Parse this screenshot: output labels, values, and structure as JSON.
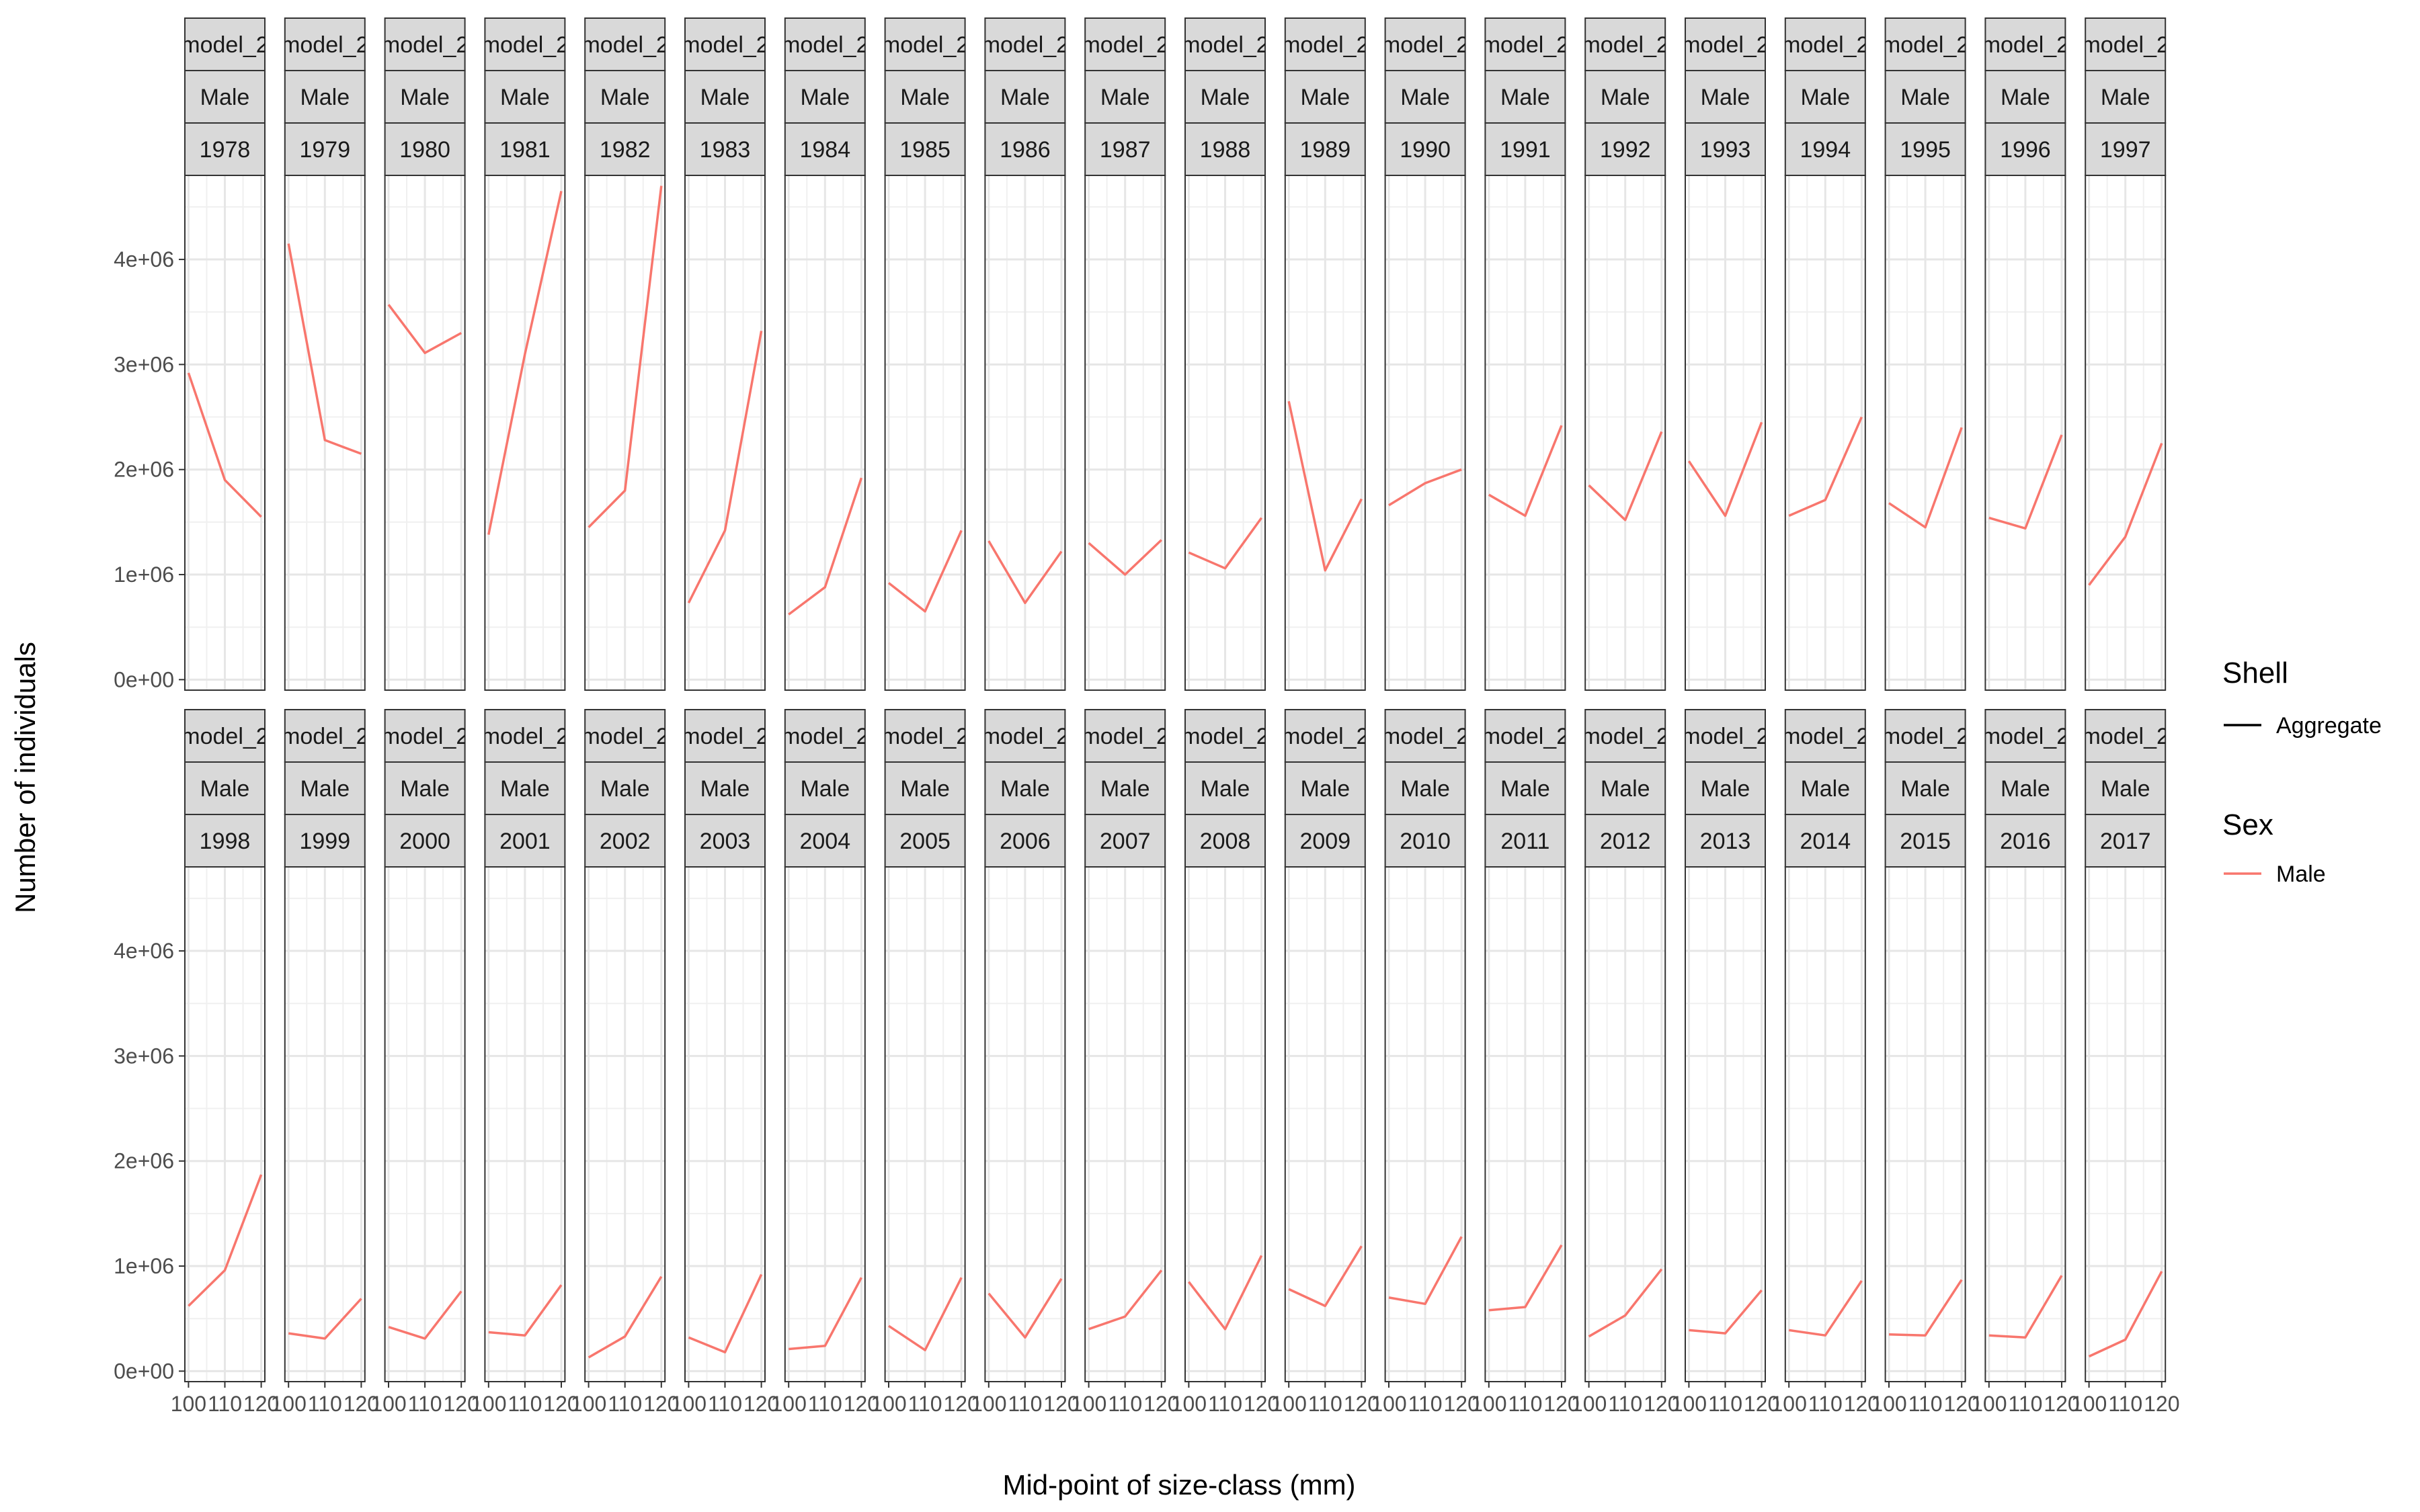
{
  "chart_data": {
    "type": "line",
    "xlabel": "Mid-point of size-class (mm)",
    "ylabel": "Number of individuals",
    "x": [
      100,
      110,
      120
    ],
    "x_tick_labels": [
      "100",
      "110",
      "120"
    ],
    "ylim": [
      -100000,
      4800000
    ],
    "y_ticks": [
      0,
      1000000,
      2000000,
      3000000,
      4000000
    ],
    "y_tick_labels": [
      "0e+00",
      "1e+06",
      "2e+06",
      "3e+06",
      "4e+06"
    ],
    "grid": true,
    "legend_placement": "right",
    "legends": [
      {
        "title": "Shell",
        "entries": [
          {
            "label": "Aggregate",
            "color": "#000000"
          }
        ]
      },
      {
        "title": "Sex",
        "entries": [
          {
            "label": "Male",
            "color": "#F8766D"
          }
        ]
      }
    ],
    "facet_strip_model": "model_2",
    "facet_strip_sex": "Male",
    "series_color": "#F8766D",
    "panels": [
      {
        "year": "1978",
        "values": [
          2920000,
          1900000,
          1550000
        ]
      },
      {
        "year": "1979",
        "values": [
          4150000,
          2280000,
          2150000
        ]
      },
      {
        "year": "1980",
        "values": [
          3570000,
          3110000,
          3300000
        ]
      },
      {
        "year": "1981",
        "values": [
          1380000,
          3100000,
          4650000
        ]
      },
      {
        "year": "1982",
        "values": [
          1450000,
          1800000,
          4700000
        ]
      },
      {
        "year": "1983",
        "values": [
          730000,
          1420000,
          3320000
        ]
      },
      {
        "year": "1984",
        "values": [
          620000,
          880000,
          1920000
        ]
      },
      {
        "year": "1985",
        "values": [
          920000,
          650000,
          1420000
        ]
      },
      {
        "year": "1986",
        "values": [
          1320000,
          730000,
          1220000
        ]
      },
      {
        "year": "1987",
        "values": [
          1300000,
          1000000,
          1330000
        ]
      },
      {
        "year": "1988",
        "values": [
          1210000,
          1060000,
          1540000
        ]
      },
      {
        "year": "1989",
        "values": [
          2650000,
          1040000,
          1720000
        ]
      },
      {
        "year": "1990",
        "values": [
          1660000,
          1870000,
          2000000
        ]
      },
      {
        "year": "1991",
        "values": [
          1760000,
          1560000,
          2420000
        ]
      },
      {
        "year": "1992",
        "values": [
          1850000,
          1520000,
          2360000
        ]
      },
      {
        "year": "1993",
        "values": [
          2080000,
          1560000,
          2450000
        ]
      },
      {
        "year": "1994",
        "values": [
          1560000,
          1710000,
          2500000
        ]
      },
      {
        "year": "1995",
        "values": [
          1680000,
          1450000,
          2400000
        ]
      },
      {
        "year": "1996",
        "values": [
          1540000,
          1440000,
          2330000
        ]
      },
      {
        "year": "1997",
        "values": [
          900000,
          1360000,
          2250000
        ]
      },
      {
        "year": "1998",
        "values": [
          620000,
          960000,
          1870000
        ]
      },
      {
        "year": "1999",
        "values": [
          360000,
          310000,
          690000
        ]
      },
      {
        "year": "2000",
        "values": [
          420000,
          310000,
          760000
        ]
      },
      {
        "year": "2001",
        "values": [
          370000,
          340000,
          820000
        ]
      },
      {
        "year": "2002",
        "values": [
          130000,
          330000,
          900000
        ]
      },
      {
        "year": "2003",
        "values": [
          320000,
          180000,
          920000
        ]
      },
      {
        "year": "2004",
        "values": [
          210000,
          240000,
          890000
        ]
      },
      {
        "year": "2005",
        "values": [
          430000,
          200000,
          890000
        ]
      },
      {
        "year": "2006",
        "values": [
          740000,
          320000,
          880000
        ]
      },
      {
        "year": "2007",
        "values": [
          400000,
          520000,
          960000
        ]
      },
      {
        "year": "2008",
        "values": [
          850000,
          400000,
          1100000
        ]
      },
      {
        "year": "2009",
        "values": [
          780000,
          620000,
          1190000
        ]
      },
      {
        "year": "2010",
        "values": [
          700000,
          640000,
          1280000
        ]
      },
      {
        "year": "2011",
        "values": [
          580000,
          610000,
          1200000
        ]
      },
      {
        "year": "2012",
        "values": [
          330000,
          530000,
          970000
        ]
      },
      {
        "year": "2013",
        "values": [
          390000,
          360000,
          770000
        ]
      },
      {
        "year": "2014",
        "values": [
          390000,
          340000,
          860000
        ]
      },
      {
        "year": "2015",
        "values": [
          350000,
          340000,
          870000
        ]
      },
      {
        "year": "2016",
        "values": [
          340000,
          320000,
          910000
        ]
      },
      {
        "year": "2017",
        "values": [
          140000,
          300000,
          950000
        ]
      }
    ]
  }
}
